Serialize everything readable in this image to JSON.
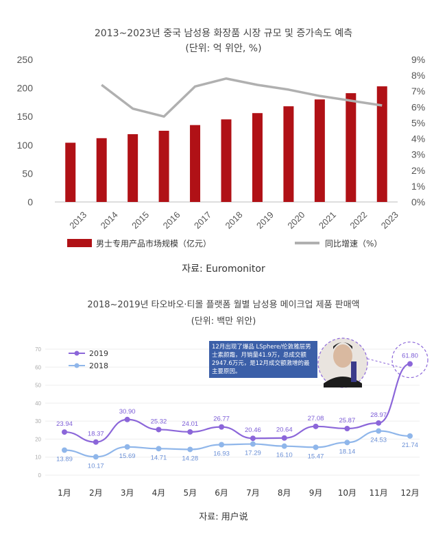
{
  "chart_data": [
    {
      "type": "bar",
      "title": "2013~2023년 중국 남성용 화장품 시장 규모 및 증가속도 예측",
      "subtitle": "(단위: 억 위안, %)",
      "categories": [
        "2013",
        "2014",
        "2015",
        "2016",
        "2017",
        "2018",
        "2019",
        "2020",
        "2021",
        "2022",
        "2023"
      ],
      "series": [
        {
          "name": "男士专用产品市场规模（亿元）",
          "type": "bar",
          "axis": "left",
          "color": "#b01116",
          "values": [
            104,
            112,
            119,
            125,
            135,
            145,
            156,
            168,
            180,
            191,
            203
          ]
        },
        {
          "name": "同比增速（%）",
          "type": "line",
          "axis": "right",
          "color": "#b0b0b0",
          "values": [
            null,
            7.4,
            5.9,
            5.4,
            7.3,
            7.8,
            7.4,
            7.1,
            6.7,
            6.4,
            6.1
          ]
        }
      ],
      "ylim": [
        0,
        250
      ],
      "yticks": [
        "0",
        "50",
        "100",
        "150",
        "200",
        "250"
      ],
      "y2lim": [
        0,
        9
      ],
      "y2ticks": [
        "0%",
        "1%",
        "2%",
        "3%",
        "4%",
        "5%",
        "6%",
        "7%",
        "8%",
        "9%"
      ],
      "legend": "bottom",
      "source": "자료: Euromonitor"
    },
    {
      "type": "line",
      "title": "2018~2019년 타오바오·티몰 플랫폼 월별 남성용 메이크업 제품 판매액",
      "subtitle": "(단위: 백만 위안)",
      "categories": [
        "1月",
        "2月",
        "3月",
        "4月",
        "5月",
        "6月",
        "7月",
        "8月",
        "9月",
        "10月",
        "11月",
        "12月"
      ],
      "series": [
        {
          "name": "2019",
          "color": "#8b66d9",
          "values": [
            23.94,
            18.37,
            30.9,
            25.32,
            24.01,
            26.77,
            20.46,
            20.64,
            27.08,
            25.87,
            28.97,
            61.8
          ]
        },
        {
          "name": "2018",
          "color": "#8fb6ea",
          "values": [
            13.89,
            10.17,
            15.69,
            14.71,
            14.28,
            16.93,
            17.29,
            16.1,
            15.47,
            18.14,
            24.53,
            21.74
          ]
        }
      ],
      "ylim": [
        0,
        70
      ],
      "yticks": [
        "0",
        "10",
        "20",
        "30",
        "40",
        "50",
        "60",
        "70"
      ],
      "legend": "top-left",
      "annotation": "12月出现了爆品 LSphere/伦敦雅层男士素颜霜，月销量41.9万，总成交额2947.6万元，是12月成交额激增的最主要原因。",
      "source": "자료: 用户说"
    }
  ]
}
